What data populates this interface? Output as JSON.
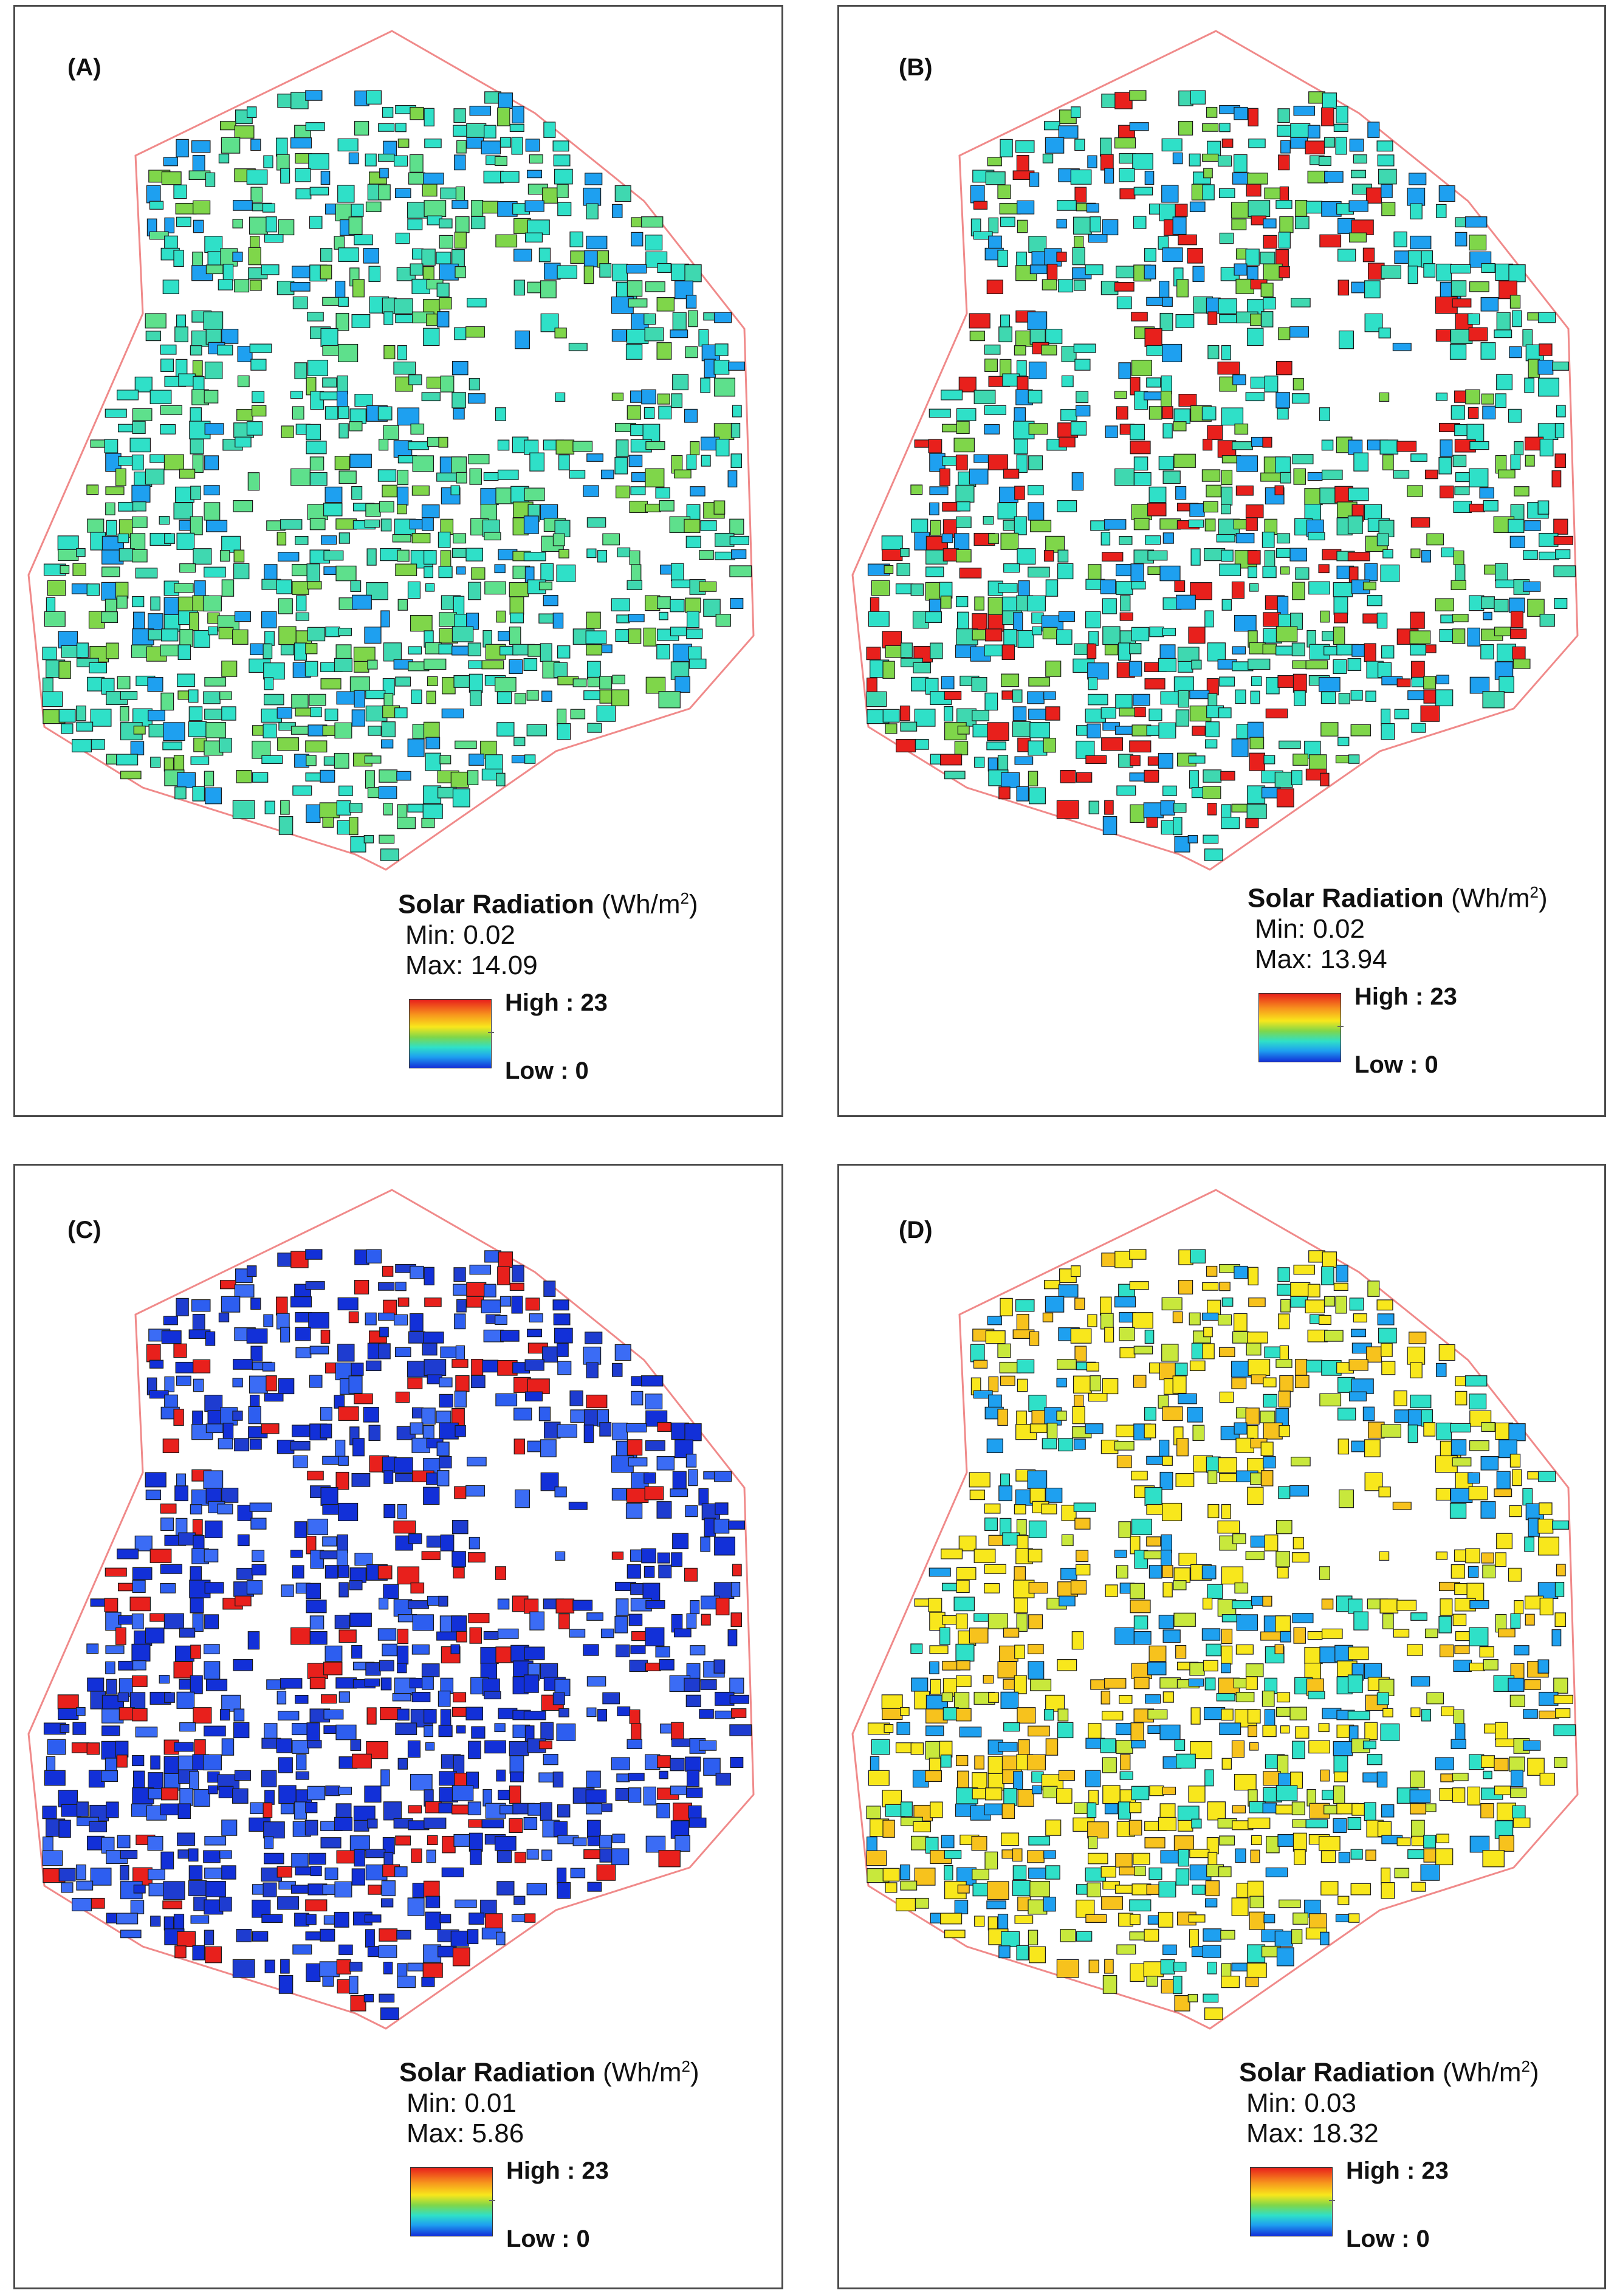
{
  "panels": [
    {
      "label": "(A)",
      "scheme": "A",
      "legend_title": "Solar Radiation",
      "legend_unit": "(Wh/m",
      "legend_sup": "2",
      "legend_unit_close": ")",
      "min_label": "Min: 0.02",
      "max_label": "Max: 14.09",
      "high_label": "High : 23",
      "low_label": "Low : 0",
      "min_value": 0.02,
      "max_value": 14.09
    },
    {
      "label": "(B)",
      "scheme": "B",
      "legend_title": "Solar Radiation",
      "legend_unit": "(Wh/m",
      "legend_sup": "2",
      "legend_unit_close": ")",
      "min_label": "Min: 0.02",
      "max_label": "Max: 13.94",
      "high_label": "High : 23",
      "low_label": "Low : 0",
      "min_value": 0.02,
      "max_value": 13.94
    },
    {
      "label": "(C)",
      "scheme": "C",
      "legend_title": "Solar Radiation",
      "legend_unit": "(Wh/m",
      "legend_sup": "2",
      "legend_unit_close": ")",
      "min_label": "Min: 0.01",
      "max_label": "Max: 5.86",
      "high_label": "High : 23",
      "low_label": "Low : 0",
      "min_value": 0.01,
      "max_value": 5.86
    },
    {
      "label": "(D)",
      "scheme": "D",
      "legend_title": "Solar Radiation",
      "legend_unit": "(Wh/m",
      "legend_sup": "2",
      "legend_unit_close": ")",
      "min_label": "Min: 0.03",
      "max_label": "Max: 18.32",
      "high_label": "High : 23",
      "low_label": "Low : 0",
      "min_value": 0.03,
      "max_value": 18.32
    }
  ],
  "colors": {
    "boundary": "#f08a8a",
    "building_outline": "#1a1a1a",
    "ramp_high": "#e8201c",
    "ramp_mid": "#f8e71c",
    "ramp_low": "#1230d8"
  },
  "color_schemes": {
    "A": [
      "#2fe0c8",
      "#3fd8b0",
      "#7fd64a",
      "#1ea0f0",
      "#2fe0c8",
      "#5ee08c"
    ],
    "B": [
      "#2fe0c8",
      "#3fd8b0",
      "#e8201c",
      "#1ea0f0",
      "#7fd64a",
      "#2fe0c8"
    ],
    "C": [
      "#1230d8",
      "#2d5ef0",
      "#1e3cd0",
      "#e8201c",
      "#3b6cf5",
      "#1230d8"
    ],
    "D": [
      "#f8e71c",
      "#c8e83c",
      "#f7c21d",
      "#2fe0c8",
      "#f8e71c",
      "#1ea0f0"
    ]
  },
  "legend_ramp_stops": [
    "#e8201c",
    "#f7941d",
    "#f8e71c",
    "#7fd64a",
    "#2fe0c8",
    "#1ea0f0",
    "#1230d8"
  ]
}
